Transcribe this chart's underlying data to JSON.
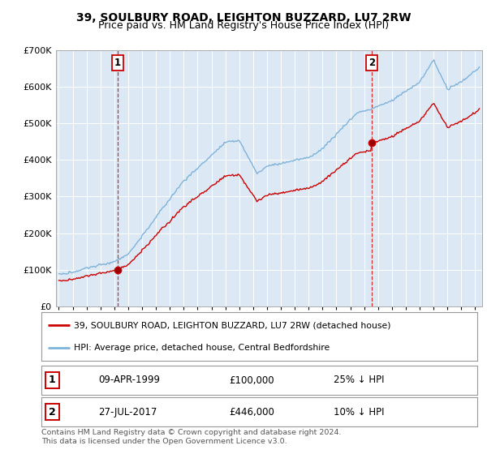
{
  "title": "39, SOULBURY ROAD, LEIGHTON BUZZARD, LU7 2RW",
  "subtitle": "Price paid vs. HM Land Registry's House Price Index (HPI)",
  "ylim": [
    0,
    700000
  ],
  "legend_line1": "39, SOULBURY ROAD, LEIGHTON BUZZARD, LU7 2RW (detached house)",
  "legend_line2": "HPI: Average price, detached house, Central Bedfordshire",
  "sale1_date": "09-APR-1999",
  "sale1_price": "£100,000",
  "sale1_hpi": "25% ↓ HPI",
  "sale2_date": "27-JUL-2017",
  "sale2_price": "£446,000",
  "sale2_hpi": "10% ↓ HPI",
  "footer": "Contains HM Land Registry data © Crown copyright and database right 2024.\nThis data is licensed under the Open Government Licence v3.0.",
  "red_color": "#cc0000",
  "blue_color": "#7fb3d9",
  "background_color": "#ffffff",
  "chart_bg_color": "#dce9f5",
  "grid_color": "#ffffff"
}
